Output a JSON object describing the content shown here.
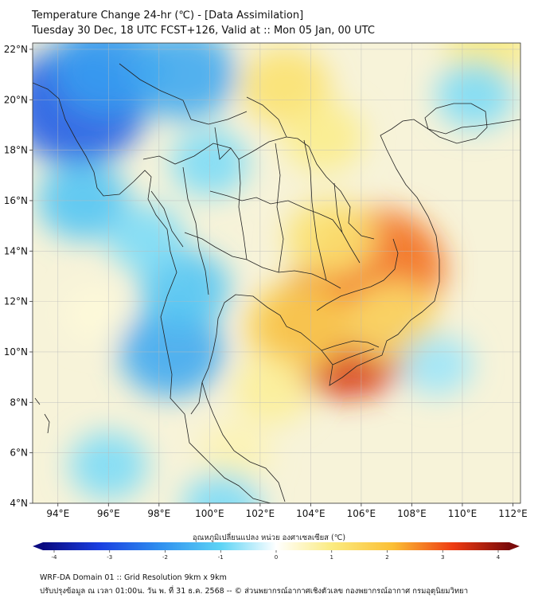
{
  "header": {
    "title_line1": "Temperature Change 24-hr (℃) - [Data Assimilation]",
    "title_line2": "Tuesday 30 Dec, 18 UTC FCST+126, Valid at :: Mon 05 Jan, 00 UTC"
  },
  "map": {
    "lat_labels": [
      "22°N",
      "20°N",
      "18°N",
      "16°N",
      "14°N",
      "12°N",
      "10°N",
      "8°N",
      "6°N",
      "4°N"
    ],
    "lon_labels": [
      "94°E",
      "96°E",
      "98°E",
      "100°E",
      "102°E",
      "104°E",
      "106°E",
      "108°E",
      "110°E",
      "112°E"
    ],
    "lat_range": [
      4,
      22.25
    ],
    "lon_range": [
      93,
      112.3
    ],
    "anomalies": [
      {
        "lon": 105.3,
        "lat": 10.9,
        "value": 3.2
      },
      {
        "lon": 106.6,
        "lat": 13.3,
        "value": 2.6
      },
      {
        "lon": 103.5,
        "lat": 11.0,
        "value": 1.6
      },
      {
        "lon": 104.8,
        "lat": 14.5,
        "value": 1.2
      },
      {
        "lon": 107.2,
        "lat": 11.2,
        "value": 1.3
      },
      {
        "lon": 103.0,
        "lat": 20.5,
        "value": 1.2
      },
      {
        "lon": 104.5,
        "lat": 18.5,
        "value": 0.9
      },
      {
        "lon": 111.0,
        "lat": 22.0,
        "value": 1.0
      },
      {
        "lon": 102.5,
        "lat": 8.5,
        "value": 0.8
      },
      {
        "lon": 101.0,
        "lat": 6.0,
        "value": 0.6
      },
      {
        "lon": 94.8,
        "lat": 19.8,
        "value": -2.6
      },
      {
        "lon": 96.0,
        "lat": 21.3,
        "value": -1.8
      },
      {
        "lon": 99.0,
        "lat": 21.0,
        "value": -1.6
      },
      {
        "lon": 95.0,
        "lat": 16.0,
        "value": -1.2
      },
      {
        "lon": 98.5,
        "lat": 10.0,
        "value": -1.6
      },
      {
        "lon": 99.0,
        "lat": 12.5,
        "value": -1.2
      },
      {
        "lon": 97.5,
        "lat": 14.5,
        "value": -0.8
      },
      {
        "lon": 100.0,
        "lat": 17.5,
        "value": -0.8
      },
      {
        "lon": 110.5,
        "lat": 20.2,
        "value": -0.8
      },
      {
        "lon": 109.0,
        "lat": 9.5,
        "value": -0.6
      },
      {
        "lon": 96.0,
        "lat": 5.5,
        "value": -0.8
      },
      {
        "lon": 100.5,
        "lat": 3.9,
        "value": -0.8
      },
      {
        "lon": 95.5,
        "lat": 11.5,
        "value": 0.3
      }
    ]
  },
  "colorbar": {
    "label": "อุณหภูมิเปลี่ยนแปลง หน่วย องศาเซลเซียส (℃)",
    "ticks": [
      "-4",
      "-3",
      "-2",
      "-1",
      "0",
      "1",
      "2",
      "3",
      "4"
    ],
    "min": -4,
    "max": 4
  },
  "footer": {
    "line1": "WRF-DA Domain 01 :: Grid Resolution 9km x 9km",
    "line2": "ปรับปรุงข้อมูล ณ เวลา 01:00น. วัน พ. ที่ 31 ธ.ค. 2568 -- © ส่วนพยากรณ์อากาศเชิงตัวเลข กองพยากรณ์อากาศ กรมอุตุนิยมวิทยา"
  },
  "colors": {
    "land_outline": "#222222",
    "grid": "#bbbbbb"
  }
}
